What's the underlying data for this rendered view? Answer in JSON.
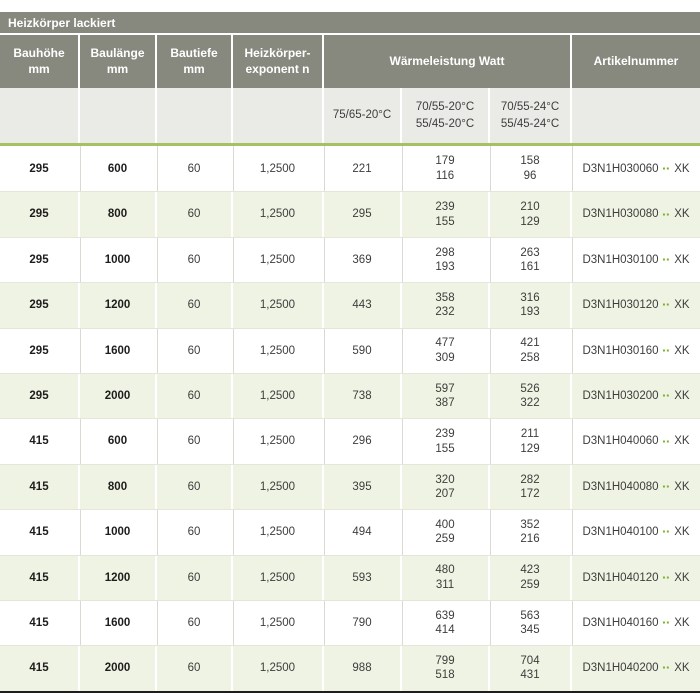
{
  "title": "Heizkörper lackiert",
  "header": {
    "bauhoehe": "Bauhöhe",
    "bauhoehe_unit": "mm",
    "baulaenge": "Baulänge",
    "baulaenge_unit": "mm",
    "bautiefe": "Bautiefe",
    "bautiefe_unit": "mm",
    "exponent_line1": "Heizkörper-",
    "exponent_line2": "exponent n",
    "waermeleistung": "Wärmeleistung Watt",
    "artikelnummer": "Artikelnummer"
  },
  "subheader": {
    "c75": "75/65-20°C",
    "c70_20a": "70/55-20°C",
    "c70_20b": "55/45-20°C",
    "c70_24a": "70/55-24°C",
    "c70_24b": "55/45-24°C"
  },
  "icons": {
    "color_code_dots": "▪▪"
  },
  "colors": {
    "header_gray": "#87897f",
    "subheader_gray": "#eaeae7",
    "row_green": "#eff3e3",
    "accent_green": "#a5c162",
    "dot_green": "#7fb02d",
    "bottom_border": "#1d1d1b"
  },
  "rows": [
    {
      "bauhoehe": "295",
      "baulaenge": "600",
      "bautiefe": "60",
      "exponent": "1,2500",
      "w75": "221",
      "w70_20a": "179",
      "w70_20b": "116",
      "w70_24a": "158",
      "w70_24b": "96",
      "artikel": "D3N1H030060",
      "artikel_suffix": "XK"
    },
    {
      "bauhoehe": "295",
      "baulaenge": "800",
      "bautiefe": "60",
      "exponent": "1,2500",
      "w75": "295",
      "w70_20a": "239",
      "w70_20b": "155",
      "w70_24a": "210",
      "w70_24b": "129",
      "artikel": "D3N1H030080",
      "artikel_suffix": "XK"
    },
    {
      "bauhoehe": "295",
      "baulaenge": "1000",
      "bautiefe": "60",
      "exponent": "1,2500",
      "w75": "369",
      "w70_20a": "298",
      "w70_20b": "193",
      "w70_24a": "263",
      "w70_24b": "161",
      "artikel": "D3N1H030100",
      "artikel_suffix": "XK"
    },
    {
      "bauhoehe": "295",
      "baulaenge": "1200",
      "bautiefe": "60",
      "exponent": "1,2500",
      "w75": "443",
      "w70_20a": "358",
      "w70_20b": "232",
      "w70_24a": "316",
      "w70_24b": "193",
      "artikel": "D3N1H030120",
      "artikel_suffix": "XK"
    },
    {
      "bauhoehe": "295",
      "baulaenge": "1600",
      "bautiefe": "60",
      "exponent": "1,2500",
      "w75": "590",
      "w70_20a": "477",
      "w70_20b": "309",
      "w70_24a": "421",
      "w70_24b": "258",
      "artikel": "D3N1H030160",
      "artikel_suffix": "XK"
    },
    {
      "bauhoehe": "295",
      "baulaenge": "2000",
      "bautiefe": "60",
      "exponent": "1,2500",
      "w75": "738",
      "w70_20a": "597",
      "w70_20b": "387",
      "w70_24a": "526",
      "w70_24b": "322",
      "artikel": "D3N1H030200",
      "artikel_suffix": "XK"
    },
    {
      "bauhoehe": "415",
      "baulaenge": "600",
      "bautiefe": "60",
      "exponent": "1,2500",
      "w75": "296",
      "w70_20a": "239",
      "w70_20b": "155",
      "w70_24a": "211",
      "w70_24b": "129",
      "artikel": "D3N1H040060",
      "artikel_suffix": "XK"
    },
    {
      "bauhoehe": "415",
      "baulaenge": "800",
      "bautiefe": "60",
      "exponent": "1,2500",
      "w75": "395",
      "w70_20a": "320",
      "w70_20b": "207",
      "w70_24a": "282",
      "w70_24b": "172",
      "artikel": "D3N1H040080",
      "artikel_suffix": "XK"
    },
    {
      "bauhoehe": "415",
      "baulaenge": "1000",
      "bautiefe": "60",
      "exponent": "1,2500",
      "w75": "494",
      "w70_20a": "400",
      "w70_20b": "259",
      "w70_24a": "352",
      "w70_24b": "216",
      "artikel": "D3N1H040100",
      "artikel_suffix": "XK"
    },
    {
      "bauhoehe": "415",
      "baulaenge": "1200",
      "bautiefe": "60",
      "exponent": "1,2500",
      "w75": "593",
      "w70_20a": "480",
      "w70_20b": "311",
      "w70_24a": "423",
      "w70_24b": "259",
      "artikel": "D3N1H040120",
      "artikel_suffix": "XK"
    },
    {
      "bauhoehe": "415",
      "baulaenge": "1600",
      "bautiefe": "60",
      "exponent": "1,2500",
      "w75": "790",
      "w70_20a": "639",
      "w70_20b": "414",
      "w70_24a": "563",
      "w70_24b": "345",
      "artikel": "D3N1H040160",
      "artikel_suffix": "XK"
    },
    {
      "bauhoehe": "415",
      "baulaenge": "2000",
      "bautiefe": "60",
      "exponent": "1,2500",
      "w75": "988",
      "w70_20a": "799",
      "w70_20b": "518",
      "w70_24a": "704",
      "w70_24b": "431",
      "artikel": "D3N1H040200",
      "artikel_suffix": "XK"
    }
  ]
}
